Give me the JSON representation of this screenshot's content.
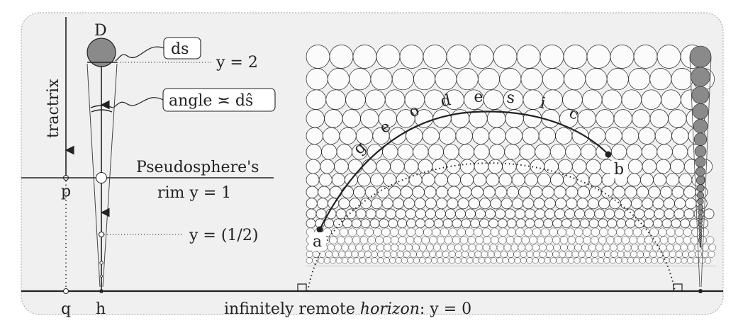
{
  "diagram": {
    "tractrix_label": "tractrix",
    "point_D": "D",
    "ds_label": "ds",
    "y2_label": "y = 2",
    "angle_label": "angle ≍ dŝ",
    "rim_line1": "Pseudosphere's",
    "rim_line2": "rim  y = 1",
    "p_label": "p",
    "half_label": "y = (1/2)",
    "q_label": "q",
    "h_label": "h",
    "horizon_prefix": "infinitely remote ",
    "horizon_italic": "horizon",
    "horizon_suffix": ": y = 0",
    "point_a": "a",
    "point_b": "b",
    "geodesic_letters": [
      "g",
      "e",
      "o",
      "d",
      "e",
      "s",
      "i",
      "c"
    ]
  },
  "colors": {
    "panel": "#f0f0f0",
    "panel_border": "#b0b0b0",
    "ink": "#222222",
    "shaded_circle": "#8a8a8a",
    "circle_fill": "#fbfbfb"
  }
}
